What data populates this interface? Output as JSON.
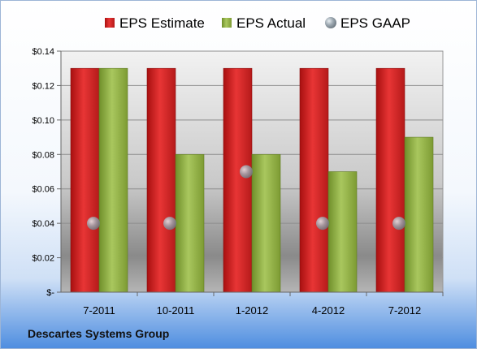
{
  "chart_data": {
    "type": "bar",
    "categories": [
      "7-2011",
      "10-2011",
      "1-2012",
      "4-2012",
      "7-2012"
    ],
    "series": [
      {
        "name": "EPS Estimate",
        "type": "bar",
        "color": "#d42a2a",
        "values": [
          0.13,
          0.13,
          0.13,
          0.13,
          0.13
        ]
      },
      {
        "name": "EPS Actual",
        "type": "bar",
        "color": "#93b24a",
        "values": [
          0.13,
          0.08,
          0.08,
          0.07,
          0.09
        ]
      },
      {
        "name": "EPS GAAP",
        "type": "marker",
        "color": "#9aa6b0",
        "values": [
          0.04,
          0.04,
          0.07,
          0.04,
          0.04
        ]
      }
    ],
    "y_ticks": [
      "$-",
      "$0.02",
      "$0.04",
      "$0.06",
      "$0.08",
      "$0.10",
      "$0.12",
      "$0.14"
    ],
    "y_tick_values": [
      0,
      0.02,
      0.04,
      0.06,
      0.08,
      0.1,
      0.12,
      0.14
    ],
    "ylim": [
      0,
      0.14
    ],
    "grid": true,
    "legend_position": "top"
  },
  "footer": {
    "company": "Descartes Systems Group"
  }
}
